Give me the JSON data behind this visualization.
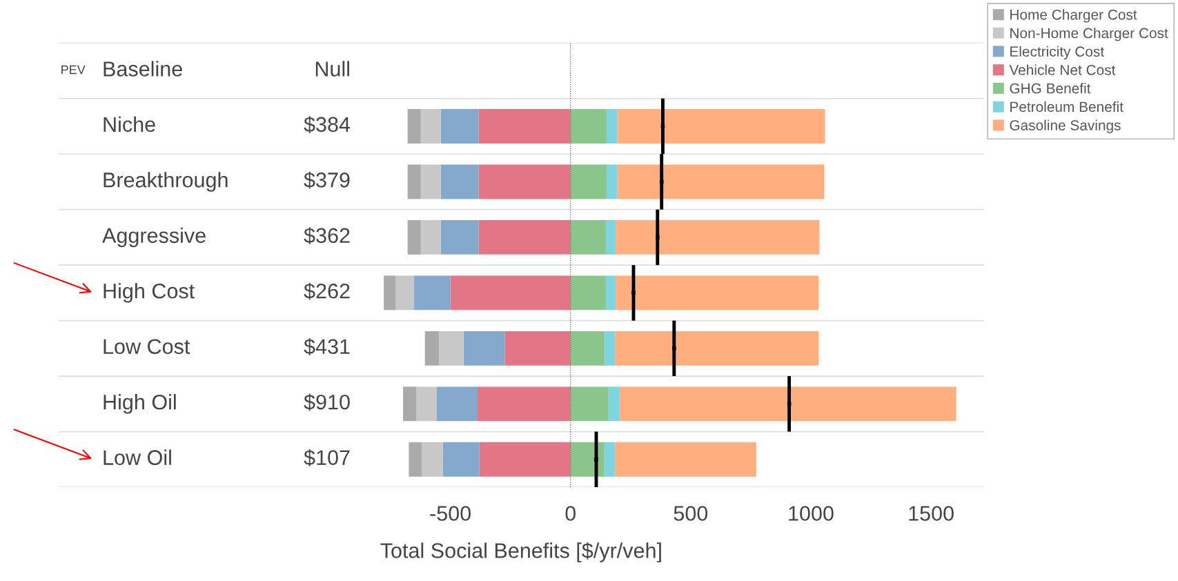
{
  "chart_data": {
    "type": "bar",
    "orientation": "horizontal",
    "stacked": true,
    "categories": [
      "Baseline",
      "Niche",
      "Breakthrough",
      "Aggressive",
      "High Cost",
      "Low Cost",
      "High Oil",
      "Low Oil"
    ],
    "y2_categories": [
      "Null",
      "$384",
      "$379",
      "$362",
      "$262",
      "$431",
      "$910",
      "$107"
    ],
    "xlabel": "Total Social Benefits [$/yr/veh]",
    "xlim": [
      -2130,
      1720
    ],
    "xticks": [
      -500,
      0,
      500,
      1000,
      1500
    ],
    "series": [
      {
        "name": "Vehicle Net Cost",
        "color": "#e37686",
        "values": [
          null,
          -383,
          -383,
          -383,
          -500,
          -274,
          -387,
          -379
        ]
      },
      {
        "name": "Electricity Cost",
        "color": "#85a9cc",
        "values": [
          null,
          -157,
          -157,
          -157,
          -151,
          -171,
          -171,
          -152
        ]
      },
      {
        "name": "Non-Home Charger Cost",
        "color": "#c8c8c8",
        "values": [
          null,
          -83,
          -83,
          -83,
          -76,
          -102,
          -83,
          -87
        ]
      },
      {
        "name": "Home Charger Cost",
        "color": "#aaaaaa",
        "values": [
          null,
          -55,
          -55,
          -55,
          -50,
          -59,
          -56,
          -55
        ]
      },
      {
        "name": "GHG Benefit",
        "color": "#8bc58b",
        "values": [
          null,
          150,
          150,
          147,
          147,
          141,
          158,
          141
        ]
      },
      {
        "name": "Petroleum Benefit",
        "color": "#80d4df",
        "values": [
          null,
          45,
          45,
          41,
          41,
          44,
          47,
          44
        ]
      },
      {
        "name": "Gasoline Savings",
        "color": "#ffae80",
        "values": [
          null,
          864,
          861,
          848,
          845,
          848,
          1400,
          588
        ]
      },
      {
        "type": "scatter",
        "color": "#000000",
        "values": [
          null,
          384,
          379,
          362,
          262,
          431,
          910,
          107
        ]
      }
    ],
    "ref_lines": [
      {
        "axis": "x",
        "value": 0,
        "color": "#555555",
        "line_style": "dotted"
      }
    ],
    "annotations": [
      "PEV"
    ],
    "legend": "top right"
  }
}
